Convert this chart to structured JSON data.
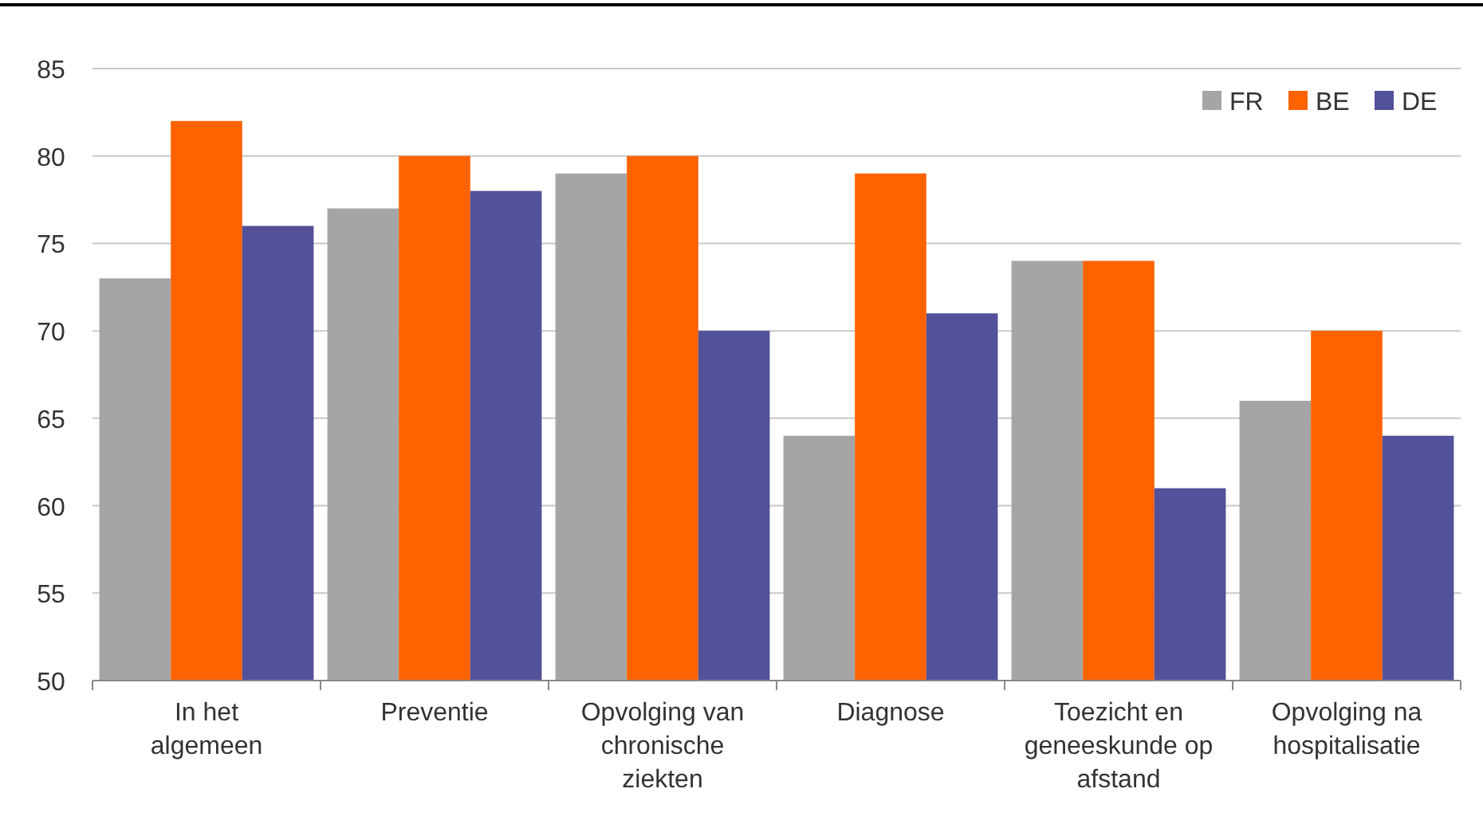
{
  "chart_data": {
    "type": "bar",
    "categories": [
      "In het algemeen",
      "Preventie",
      "Opvolging van chronische ziekten",
      "Diagnose",
      "Toezicht en geneeskunde op afstand",
      "Opvolging na hospitalisatie"
    ],
    "series": [
      {
        "name": "FR",
        "color": "#a5a5a5",
        "values": [
          73,
          77,
          79,
          64,
          74,
          66
        ]
      },
      {
        "name": "BE",
        "color": "#ff6200",
        "values": [
          82,
          80,
          80,
          79,
          74,
          70
        ]
      },
      {
        "name": "DE",
        "color": "#525199",
        "values": [
          76,
          78,
          70,
          71,
          61,
          64
        ]
      }
    ],
    "ylim": [
      50,
      85
    ],
    "yticks": [
      50,
      55,
      60,
      65,
      70,
      75,
      80,
      85
    ],
    "grid": "y",
    "legend": "top right"
  }
}
